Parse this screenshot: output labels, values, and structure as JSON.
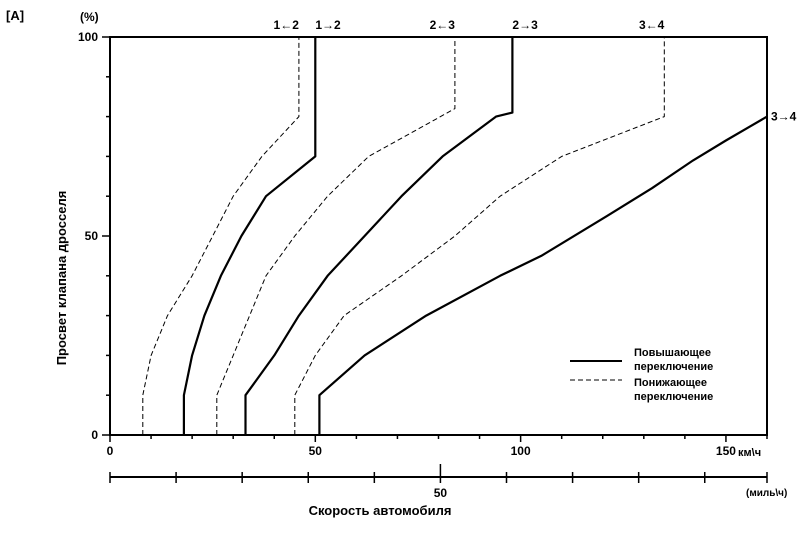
{
  "figure_label": "[A]",
  "chart_data": {
    "type": "line",
    "xlabel": "Скорость автомобиля",
    "ylabel": "Просвет клапана дросселя",
    "y_unit": "(%)",
    "x_unit_kmh": "км\\ч",
    "x_unit_mph": "(миль\\ч)",
    "xlim": [
      0,
      160
    ],
    "ylim": [
      0,
      100
    ],
    "x_ticks": [
      0,
      50,
      100,
      150
    ],
    "x_tick_labels": [
      "0",
      "50",
      "100",
      "150"
    ],
    "y_ticks": [
      0,
      50,
      100
    ],
    "y_tick_labels": [
      "0",
      "50",
      "100"
    ],
    "mph_ticks": [
      50
    ],
    "mph_tick_labels": [
      "50"
    ],
    "legend": {
      "position": "bottom-right",
      "entries": [
        {
          "label": "Повышающее переключение",
          "style": "solid"
        },
        {
          "label": "Понижающее переключение",
          "style": "dashed"
        }
      ]
    },
    "series": [
      {
        "style": "dashed",
        "top_label": "1←2",
        "points": [
          [
            8,
            0
          ],
          [
            8,
            10
          ],
          [
            10,
            20
          ],
          [
            14,
            30
          ],
          [
            20,
            40
          ],
          [
            25,
            50
          ],
          [
            30,
            60
          ],
          [
            37,
            70
          ],
          [
            46,
            80
          ],
          [
            46,
            100
          ]
        ]
      },
      {
        "style": "solid",
        "top_label": "1→2",
        "points": [
          [
            18,
            0
          ],
          [
            18,
            10
          ],
          [
            20,
            20
          ],
          [
            23,
            30
          ],
          [
            27,
            40
          ],
          [
            32,
            50
          ],
          [
            38,
            60
          ],
          [
            50,
            70
          ],
          [
            50,
            100
          ]
        ]
      },
      {
        "style": "dashed",
        "top_label": "2←3",
        "points": [
          [
            26,
            0
          ],
          [
            26,
            10
          ],
          [
            30,
            20
          ],
          [
            34,
            30
          ],
          [
            38,
            40
          ],
          [
            45,
            50
          ],
          [
            53,
            60
          ],
          [
            63,
            70
          ],
          [
            84,
            82
          ],
          [
            84,
            100
          ]
        ]
      },
      {
        "style": "solid",
        "top_label": "2→3",
        "points": [
          [
            33,
            0
          ],
          [
            33,
            10
          ],
          [
            40,
            20
          ],
          [
            46,
            30
          ],
          [
            53,
            40
          ],
          [
            62,
            50
          ],
          [
            71,
            60
          ],
          [
            81,
            70
          ],
          [
            94,
            80
          ],
          [
            98,
            81
          ],
          [
            98,
            100
          ]
        ]
      },
      {
        "style": "dashed",
        "top_label": "3←4",
        "points": [
          [
            45,
            0
          ],
          [
            45,
            10
          ],
          [
            50,
            20
          ],
          [
            57,
            30
          ],
          [
            71,
            40
          ],
          [
            84,
            50
          ],
          [
            95,
            60
          ],
          [
            110,
            70
          ],
          [
            135,
            80
          ],
          [
            135,
            100
          ]
        ]
      },
      {
        "style": "solid",
        "top_label": "3→4",
        "points": [
          [
            51,
            0
          ],
          [
            51,
            10
          ],
          [
            62,
            20
          ],
          [
            77,
            30
          ],
          [
            95,
            40
          ],
          [
            105,
            45
          ],
          [
            121,
            55
          ],
          [
            132,
            62
          ],
          [
            142,
            69
          ],
          [
            150,
            74
          ],
          [
            160,
            80
          ]
        ]
      }
    ]
  }
}
